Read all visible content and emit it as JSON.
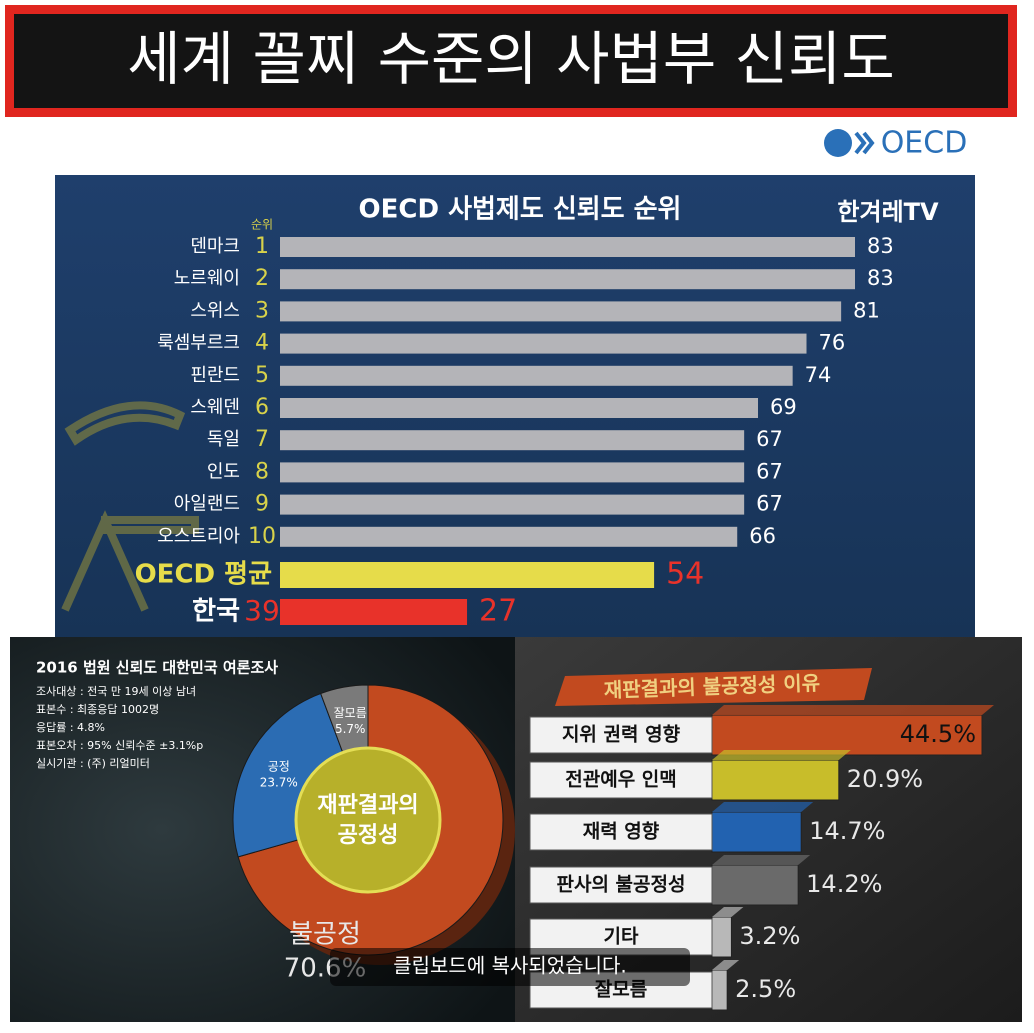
{
  "header": {
    "title": "세계 꼴찌 수준의 사법부 신뢰도",
    "logo": "OECD"
  },
  "chart_data": [
    {
      "type": "bar",
      "title": "OECD 사법제도 신뢰도 순위",
      "rank_label": "순위",
      "brand": "한겨레TV",
      "categories": [
        "덴마크",
        "노르웨이",
        "스위스",
        "룩셈부르크",
        "핀란드",
        "스웨덴",
        "독일",
        "인도",
        "아일랜드",
        "오스트리아",
        "OECD 평균",
        "한국"
      ],
      "ranks": [
        1,
        2,
        3,
        4,
        5,
        6,
        7,
        8,
        9,
        10,
        null,
        39
      ],
      "values": [
        83,
        83,
        81,
        76,
        74,
        69,
        67,
        67,
        67,
        66,
        54,
        27
      ],
      "colors": [
        "#b4b4b8",
        "#b4b4b8",
        "#b4b4b8",
        "#b4b4b8",
        "#b4b4b8",
        "#b4b4b8",
        "#b4b4b8",
        "#b4b4b8",
        "#b4b4b8",
        "#b4b4b8",
        "#e6dc4a",
        "#e8322a"
      ]
    },
    {
      "type": "pie",
      "title": "2016 법원 신뢰도 대한민국 여론조사",
      "notes": [
        "조사대상 : 전국 만 19세 이상 남녀",
        "표본수 : 최종응답 1002명",
        "응답률 : 4.8%",
        "표본오차 : 95% 신뢰수준 ±3.1%p",
        "실시기관 : (주) 리얼미터"
      ],
      "center_label": [
        "재판결과의",
        "공정성"
      ],
      "categories": [
        "불공정",
        "공정",
        "잘모름"
      ],
      "values": [
        70.6,
        23.7,
        5.7
      ],
      "value_labels": [
        "70.6%",
        "23.7%",
        "5.7%"
      ],
      "colors": [
        "#c24a1f",
        "#2b6cb3",
        "#7a7a7a"
      ]
    },
    {
      "type": "bar",
      "title": "재판결과의 불공정성 이유",
      "categories": [
        "지위 권력 영향",
        "전관예우 인맥",
        "재력 영향",
        "판사의 불공정성",
        "기타",
        "잘모름"
      ],
      "values": [
        44.5,
        20.9,
        14.7,
        14.2,
        3.2,
        2.5
      ],
      "value_labels": [
        "44.5%",
        "20.9%",
        "14.7%",
        "14.2%",
        "3.2%",
        "2.5%"
      ],
      "colors": [
        "#c24a1f",
        "#c8bd2a",
        "#2262b0",
        "#6a6a6a",
        "#b8b8b8",
        "#b8b8b8"
      ]
    }
  ],
  "toast": "클립보드에 복사되었습니다."
}
